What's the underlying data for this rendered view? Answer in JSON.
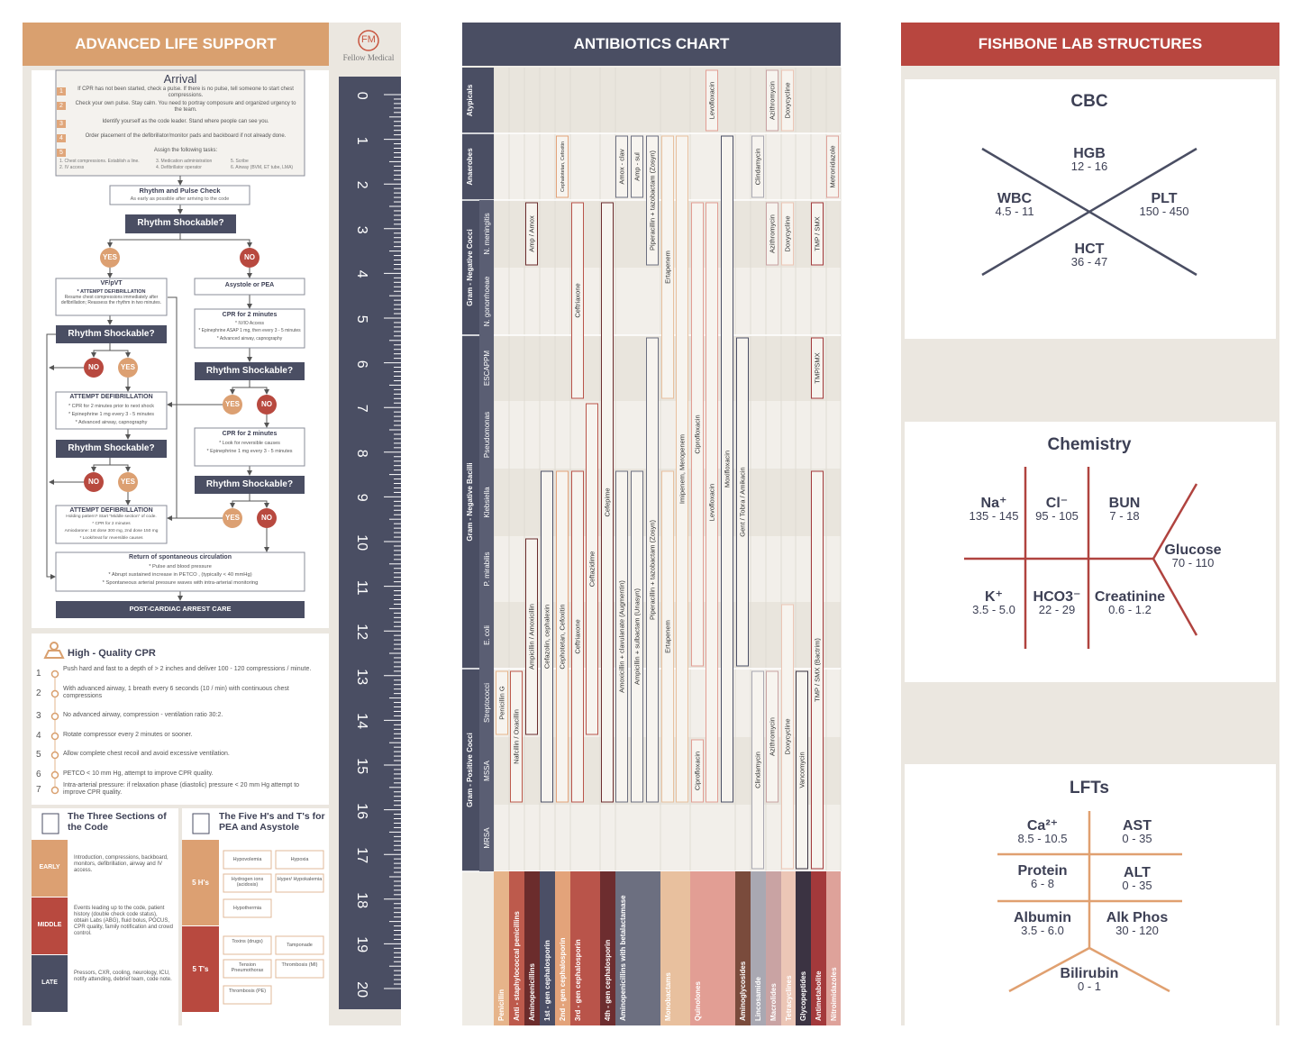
{
  "als": {
    "title": "ADVANCED LIFE SUPPORT",
    "logo_mark": "FM",
    "logo_name": "Fellow Medical",
    "ruler": [
      0,
      1,
      2,
      3,
      4,
      5,
      6,
      7,
      8,
      9,
      10,
      11,
      12,
      13,
      14,
      15,
      16,
      17,
      18,
      19,
      20
    ],
    "arrival": {
      "title": "Arrival",
      "step_numbers": [
        1,
        2,
        3,
        4,
        5
      ],
      "steps": [
        "If CPR has not been started, check a pulse. If there is no pulse, tell someone to start chest compressions.",
        "Check your own pulse. Stay calm. You need to portray composure and organized urgency to the team.",
        "Identify yourself as the code leader. Stand where people can see you.",
        "Order placement of the defibrillator/monitor pads and backboard if not already done.",
        "Assign the following tasks:"
      ],
      "tasks": [
        "1. Chest compressions. Establish a line.",
        "2. IV access",
        "3. Medication administration",
        "4. Defibrillator operator",
        "5. Scribe",
        "6. Airway (BVM, ET tube, LMA)"
      ]
    },
    "check": {
      "title": "Rhythm and Pulse Check",
      "sub": "As early as possible after arriving to the code"
    },
    "shockable": "Rhythm Shockable?",
    "yes": "YES",
    "no": "NO",
    "vf": {
      "title": "VF/pVT",
      "sub": "* ATTEMPT DEFIBRILLATION",
      "text": "Resume chest compressions immediately after defibrillation; Reassess the rhythm in two minutes."
    },
    "asystole": "Asystole or PEA",
    "cpr1": {
      "title": "CPR for 2 minutes",
      "items": [
        "* IV/IO Access",
        "* Epinephrine ASAP 1 mg, then every 3 - 5 minutes",
        "* Advanced airway, capnography"
      ]
    },
    "defib1": {
      "title": "ATTEMPT DEFIBRILLATION",
      "items": [
        "* CPR for 2 minutes prior to next shock",
        "* Epinephrine 1 mg every 3 - 5 minutes",
        "* Advanced airway, capnography"
      ]
    },
    "cpr2": {
      "title": "CPR for 2 minutes",
      "items": [
        "* Look for reversible causes",
        "* Epinephrine 1 mg every 3 - 5 minutes"
      ]
    },
    "defib2": {
      "title": "ATTEMPT DEFIBRILLATION",
      "items": [
        "Holding pattern? Start \"Middle section\" of code.",
        "* CPR for 2 minutes",
        "Amiodarone: 1st dose 300 mg, 2nd dose 150 mg",
        "* Look/treat for reversible causes"
      ]
    },
    "rosc": {
      "title": "Return of spontaneous circulation",
      "items": [
        "* Pulse and blood pressure",
        "* Abrupt sustained increase in PETCO , (typically < 40 mmHg)",
        "* Spontaneous arterial pressure waves with intra-arterial monitoring"
      ]
    },
    "post": "POST-CARDIAC ARREST CARE",
    "cpr": {
      "title": "High - Quality CPR",
      "numbers": [
        1,
        2,
        3,
        4,
        5,
        6,
        7
      ],
      "items": [
        "Push hard and fast to a depth of > 2 inches and deliver 100 - 120 compressions / minute.",
        "With advanced airway, 1 breath every 6 seconds (10 / min) with continuous chest compressions",
        "No advanced airway, compression - ventilation ratio 30:2.",
        "Rotate compressor every 2 minutes or sooner.",
        "Allow complete chest recoil and avoid excessive ventilation.",
        "PETCO < 10 mm Hg, attempt to improve CPR quality.",
        "Intra-arterial pressure: if relaxation phase (diastolic) pressure < 20 mm Hg attempt to improve CPR quality."
      ]
    },
    "three": {
      "title": "The Three Sections of the Code",
      "rows": [
        {
          "label": "EARLY",
          "text": "Introduction, compressions, backboard, monitors, defibrillation, airway and IV access."
        },
        {
          "label": "MIDDLE",
          "text": "Events leading up to the code, patient history (double check code status), obtain Labs (ABG), fluid bolus, POCUS, CPR quality, family notification and crowd control."
        },
        {
          "label": "LATE",
          "text": "Pressors, CXR, cooling, neurology, ICU, notify attending, debrief team, code note."
        }
      ]
    },
    "ht": {
      "title": "The Five H's and T's for PEA and Asystole",
      "h_label": "5 H's",
      "h": [
        "Hypovolemia",
        "Hypoxia",
        "Hydrogen ions (acidosis)",
        "Hyper/ Hypokalemia",
        "Hypothermia"
      ],
      "t_label": "5 T's",
      "t": [
        "Toxins (drugs)",
        "Tamponade",
        "Tension Pneumothorax",
        "Thrombosis (MI)",
        "Thrombosis (PE)"
      ]
    }
  },
  "antibiotics": {
    "title": "ANTIBIOTICS CHART",
    "groups": [
      {
        "name": "Atypicals"
      },
      {
        "name": "Anaerobes"
      },
      {
        "name": "Gram - Negative Cocci",
        "rows": [
          "N. meningitis",
          "N. gonorrhoeae"
        ]
      },
      {
        "name": "Gram - Negative Bacilli",
        "rows": [
          "ESCAPPM",
          "Pseudomonas",
          "Klebsiella",
          "P. mirabilis",
          "E. coli"
        ]
      },
      {
        "name": "Gram - Positive Cocci",
        "rows": [
          "Streptococci",
          "MSSA",
          "MRSA"
        ]
      }
    ],
    "classes": [
      {
        "name": "Penicillin",
        "color": "#e6b48a"
      },
      {
        "name": "Anti - staphylococcal penicillins",
        "color": "#bd5a4c"
      },
      {
        "name": "Aminopenicillins",
        "color": "#6b2c2c"
      },
      {
        "name": "1st - gen cephalosporin",
        "color": "#4b4f66"
      },
      {
        "name": "2nd - gen cephalosporin",
        "color": "#e3a37a"
      },
      {
        "name": "3rd - gen cephalosporin",
        "color": "#b9544a"
      },
      {
        "name": "4th - gen cephalosporin",
        "color": "#6d2d2f"
      },
      {
        "name": "Aminopenicillins with betalactamase",
        "color": "#6c6f80"
      },
      {
        "name": "Monobactams",
        "color": "#e8c09e"
      },
      {
        "name": "Quinolones",
        "color": "#e29e94"
      },
      {
        "name": "Aminoglycosides",
        "color": "#7a4b3c"
      },
      {
        "name": "Lincosamide",
        "color": "#a9a8b2"
      },
      {
        "name": "Macrolides",
        "color": "#c9a3a3"
      },
      {
        "name": "Tetracyclines",
        "color": "#ecc6b6"
      },
      {
        "name": "Glycopeptides",
        "color": "#3b3342"
      },
      {
        "name": "Antimetabolite",
        "color": "#a3393b"
      },
      {
        "name": "Nitroimidazoles",
        "color": "#dea29a"
      }
    ],
    "drugs": [
      "Penicillin G",
      "Nafcillin / Oxacillin",
      "Amp / Amox",
      "Ampicillin / Amoxicillin",
      "Cefazolin, cephalexin",
      "Cephalotetan, Cefoxitin",
      "Cephotetan, Cefoxitin",
      "Ceftriaxone",
      "Ceftriaxone",
      "Ceftazidime",
      "Cefepime",
      "Amox - clav",
      "Amp - sul",
      "Piperacillin + tazobactam (Zosyn)",
      "Amoxicillin + clavulanate (Augmentin)",
      "Ampicillin + sulbactam (Unasyn)",
      "Piperacillin + tazobactam (Zosyn)",
      "Ertapenem",
      "Imipenem, Meropenem",
      "Ertapenem",
      "Levofloxacin",
      "Ciprofloxacin",
      "Levofloxacin",
      "Ciprofloxacin",
      "Moxifloxacin",
      "Gent / Tobra / Amikacin",
      "Clindamycin",
      "Clindamycin",
      "Azithromycin",
      "Azithromycin",
      "Azithromycin",
      "Doxycycline",
      "Doxycycline",
      "Doxycycline",
      "Vancomycin",
      "TMP / SMX",
      "TMP/SMX",
      "TMP / SMX (Bactrim)",
      "Metronidazole"
    ]
  },
  "fishbone": {
    "title": "FISHBONE LAB STRUCTURES",
    "cbc": {
      "title": "CBC",
      "items": [
        {
          "name": "HGB",
          "range": "12 - 16"
        },
        {
          "name": "WBC",
          "range": "4.5 - 11"
        },
        {
          "name": "PLT",
          "range": "150 - 450"
        },
        {
          "name": "HCT",
          "range": "36 - 47"
        }
      ]
    },
    "chemistry": {
      "title": "Chemistry",
      "items": [
        {
          "name": "Na⁺",
          "range": "135 - 145"
        },
        {
          "name": "Cl⁻",
          "range": "95 - 105"
        },
        {
          "name": "BUN",
          "range": "7 - 18"
        },
        {
          "name": "Glucose",
          "range": "70 - 110"
        },
        {
          "name": "K⁺",
          "range": "3.5 - 5.0"
        },
        {
          "name": "HCO3⁻",
          "range": "22 - 29"
        },
        {
          "name": "Creatinine",
          "range": "0.6 - 1.2"
        }
      ]
    },
    "lfts": {
      "title": "LFTs",
      "items": [
        {
          "name": "Ca²⁺",
          "range": "8.5 - 10.5"
        },
        {
          "name": "AST",
          "range": "0 - 35"
        },
        {
          "name": "Protein",
          "range": "6 - 8"
        },
        {
          "name": "ALT",
          "range": "0 - 35"
        },
        {
          "name": "Albumin",
          "range": "3.5 - 6.0"
        },
        {
          "name": "Alk Phos",
          "range": "30 - 120"
        },
        {
          "name": "Bilirubin",
          "range": "0 - 1"
        }
      ]
    }
  }
}
